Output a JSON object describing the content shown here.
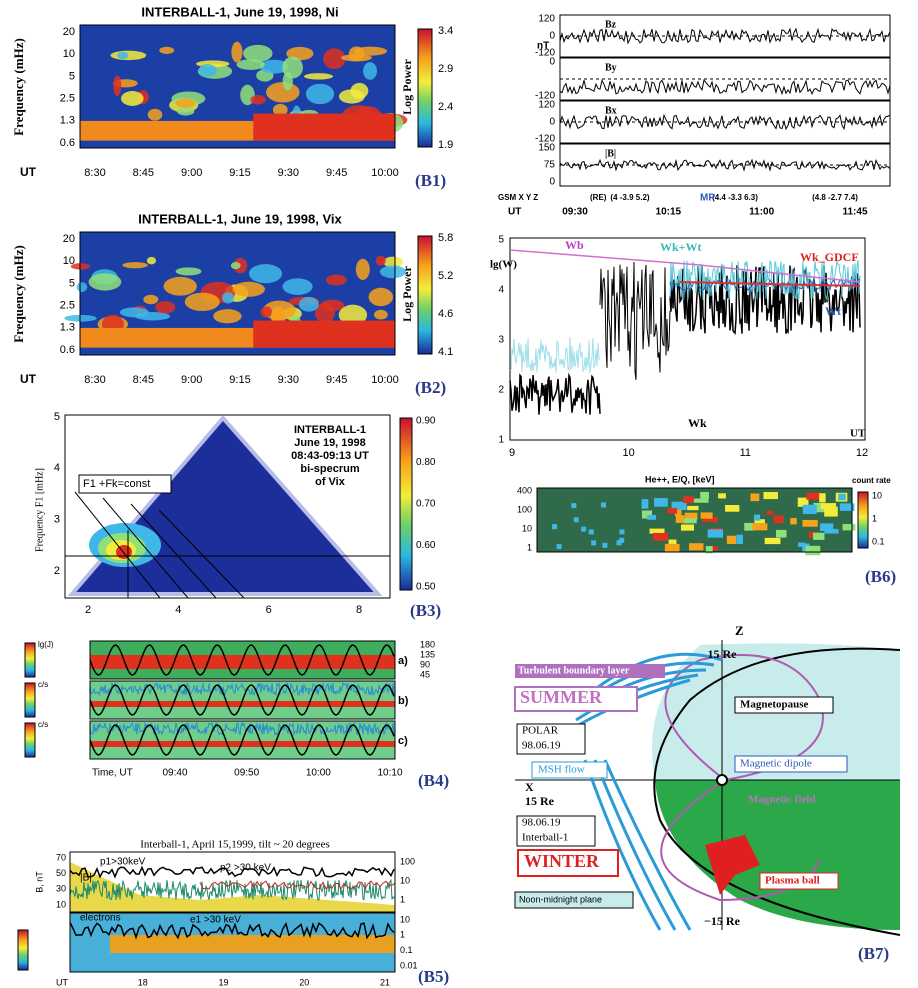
{
  "b1": {
    "title": "INTERBALL-1, June 19, 1998, Ni",
    "ylabel": "Frequency (mHz)",
    "yticks": [
      "20",
      "10",
      "5",
      "2.5",
      "1.3",
      "0.6"
    ],
    "xaxis": "UT",
    "xticks": [
      "8:30",
      "8:45",
      "9:00",
      "9:15",
      "9:30",
      "9:45",
      "10:00"
    ],
    "cbar_label": "Log Power",
    "cbar_ticks": [
      "3.4",
      "2.9",
      "2.4",
      "1.9"
    ],
    "tag": "(B1)"
  },
  "b2": {
    "title": "INTERBALL-1, June 19, 1998, Vix",
    "ylabel": "Frequency (mHz)",
    "yticks": [
      "20",
      "10",
      "5",
      "2.5",
      "1.3",
      "0.6"
    ],
    "xaxis": "UT",
    "xticks": [
      "8:30",
      "8:45",
      "9:00",
      "9:15",
      "9:30",
      "9:45",
      "10:00"
    ],
    "cbar_label": "Log Power",
    "cbar_ticks": [
      "5.8",
      "5.2",
      "4.6",
      "4.1"
    ],
    "tag": "(B2)"
  },
  "b3": {
    "ylabel": "Frequency F1 [mHz]",
    "yticks": [
      "5",
      "4",
      "3",
      "2"
    ],
    "xticks": [
      "2",
      "4",
      "6",
      "8"
    ],
    "formula": "F1 +Fk=const",
    "note": [
      "INTERBALL-1",
      "June 19, 1998",
      "08:43-09:13 UT",
      "bi-specrum",
      "of Vix"
    ],
    "cbar_ticks": [
      "0.90",
      "0.80",
      "0.70",
      "0.60",
      "0.50"
    ],
    "tag": "(B3)"
  },
  "b4": {
    "cbar_labels": [
      "lg(J)",
      "c/s",
      "c/s"
    ],
    "panels": [
      "a)",
      "b)",
      "c)"
    ],
    "right_ticks": [
      "180",
      "135",
      "90",
      "45"
    ],
    "xaxis": "Time, UT",
    "xticks": [
      "09:40",
      "09:50",
      "10:00",
      "10:10"
    ],
    "tag": "(B4)"
  },
  "b5": {
    "title": "Interball-1, April 15,1999, tilt ~ 20 degrees",
    "ylabel": "B, nT",
    "yticks": [
      "70",
      "50",
      "30",
      "10"
    ],
    "right_ticks": [
      "100",
      "10",
      "1"
    ],
    "right_ticks2": [
      "10",
      "1",
      "0.1",
      "0.01"
    ],
    "labels": [
      "p1>30keV",
      "p2 >30 keV",
      "|B|",
      "electrons",
      "e1 >30 keV"
    ],
    "xticks": [
      "UT",
      "18",
      "19",
      "20",
      "21"
    ],
    "tag": "(B5)"
  },
  "b6": {
    "unit": "nT",
    "mag": [
      {
        "name": "Bz",
        "ticks": [
          "120",
          "0",
          "-120"
        ]
      },
      {
        "name": "By",
        "ticks": [
          "0",
          "-120"
        ]
      },
      {
        "name": "Bx",
        "ticks": [
          "120",
          "0",
          "-120"
        ]
      },
      {
        "name": "|B|",
        "ticks": [
          "150",
          "75",
          "0"
        ]
      }
    ],
    "gsm": "GSM X Y Z",
    "re": "(RE)",
    "coords": [
      "(4 -3.9 5.2)",
      "(4.4 -3.3 6.3)",
      "(4.8 -2.7 7.4)"
    ],
    "mp": "MP",
    "ut": "UT",
    "uticks": [
      "09:30",
      "10:15",
      "11:00",
      "11:45"
    ],
    "ylabel": "lg(W)",
    "yticks": [
      "5",
      "4",
      "3",
      "2",
      "1"
    ],
    "xticks": [
      "9",
      "10",
      "11",
      "12"
    ],
    "xaxis": "UT",
    "series": [
      "Wb",
      "Wk+Wt",
      "Wk_GDCF",
      "Wt",
      "Wk"
    ],
    "spec_title": "He++, E/Q, [keV]",
    "spec_ticks": [
      "400",
      "100",
      "10",
      "1"
    ],
    "cbar_title": "count rate",
    "cbar_ticks": [
      "10",
      "1",
      "0.1"
    ],
    "tag": "(B6)"
  },
  "b7": {
    "z": "Z",
    "top": "15 Re",
    "tbl": "Turbulent boundary layer",
    "summer": "SUMMER",
    "mp": "Magnetopause",
    "polar": [
      "POLAR",
      "98.06.19"
    ],
    "msh": "MSH flow",
    "dipole": "Magnetic dipole",
    "x": "X",
    "left": "15 Re",
    "field": "Magnetic field",
    "ib": [
      "98.06.19",
      "Interball-1"
    ],
    "winter": "WINTER",
    "ball": "Plasma ball",
    "bottom": "−15 Re",
    "plane": "Noon-midnight plane",
    "tag": "(B7)"
  }
}
